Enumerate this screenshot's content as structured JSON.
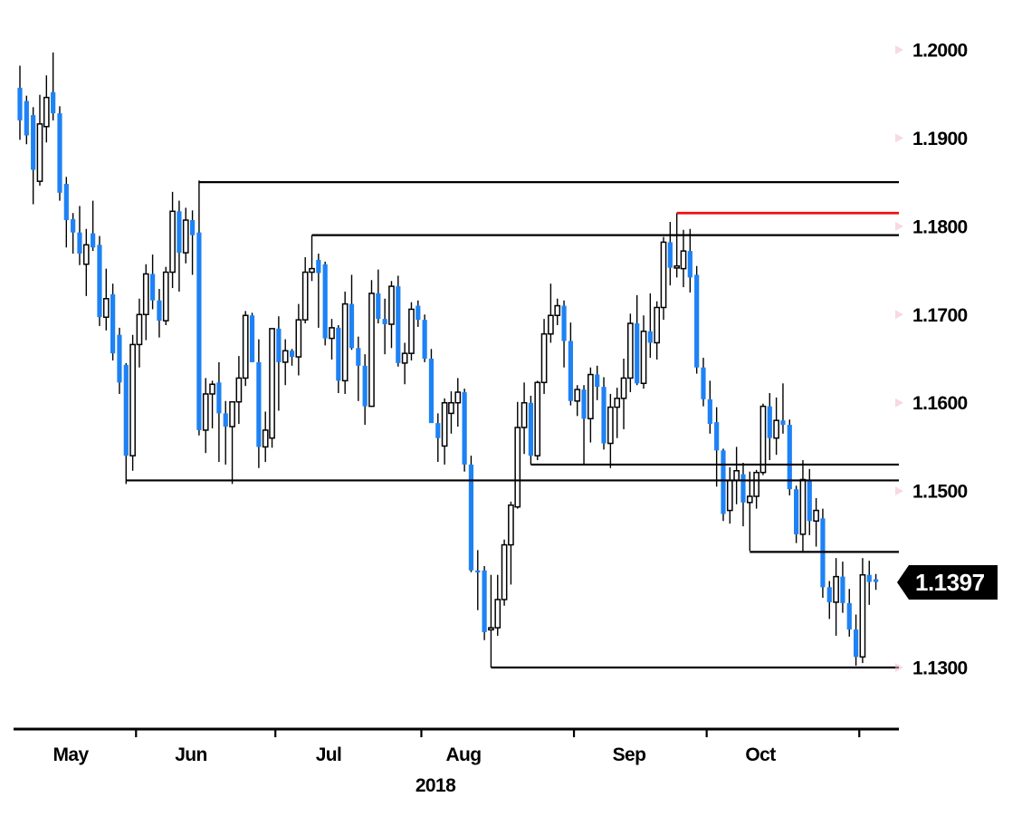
{
  "chart_data": {
    "type": "candlestick",
    "title": "",
    "x_axis": {
      "month_labels": [
        "May",
        "Jun",
        "Jul",
        "Aug",
        "Sep",
        "Oct"
      ],
      "year_label": "2018"
    },
    "y_axis": {
      "tick_labels": [
        "1.2000",
        "1.1900",
        "1.1800",
        "1.1700",
        "1.1600",
        "1.1500",
        "1.1300"
      ],
      "tick_values": [
        1.2,
        1.19,
        1.18,
        1.17,
        1.16,
        1.15,
        1.13
      ]
    },
    "ylim": [
      1.1265,
      1.2045
    ],
    "last_price_label": "1.1397",
    "last_price": 1.1397,
    "legend": "up candles hollow white, down candles solid blue",
    "month_start_indices": [
      18,
      39,
      61,
      84,
      104,
      127
    ],
    "candles": [
      [
        1.1957,
        1.1982,
        1.1898,
        1.192
      ],
      [
        1.1942,
        1.1948,
        1.1893,
        1.1903
      ],
      [
        1.1926,
        1.1935,
        1.1825,
        1.1864
      ],
      [
        1.1851,
        1.1949,
        1.1846,
        1.1916
      ],
      [
        1.1913,
        1.1971,
        1.1895,
        1.1946
      ],
      [
        1.1952,
        1.1997,
        1.192,
        1.1928
      ],
      [
        1.1928,
        1.1936,
        1.1829,
        1.1838
      ],
      [
        1.1848,
        1.1856,
        1.1776,
        1.1807
      ],
      [
        1.1808,
        1.1815,
        1.1769,
        1.1793
      ],
      [
        1.1793,
        1.1823,
        1.1756,
        1.1769
      ],
      [
        1.1757,
        1.1797,
        1.1721,
        1.1779
      ],
      [
        1.1792,
        1.1829,
        1.1772,
        1.1776
      ],
      [
        1.1779,
        1.1789,
        1.1687,
        1.1697
      ],
      [
        1.1697,
        1.1752,
        1.1682,
        1.1718
      ],
      [
        1.1723,
        1.1735,
        1.1648,
        1.1656
      ],
      [
        1.1677,
        1.1685,
        1.161,
        1.1623
      ],
      [
        1.1643,
        1.1645,
        1.1508,
        1.154
      ],
      [
        1.154,
        1.1677,
        1.1523,
        1.1666
      ],
      [
        1.1666,
        1.1718,
        1.164,
        1.17
      ],
      [
        1.17,
        1.1757,
        1.1671,
        1.1746
      ],
      [
        1.1746,
        1.1768,
        1.1706,
        1.1716
      ],
      [
        1.1716,
        1.1729,
        1.1674,
        1.1693
      ],
      [
        1.1693,
        1.1754,
        1.1688,
        1.1748
      ],
      [
        1.1748,
        1.1839,
        1.173,
        1.1817
      ],
      [
        1.1817,
        1.1829,
        1.1726,
        1.177
      ],
      [
        1.177,
        1.1821,
        1.1758,
        1.1807
      ],
      [
        1.1807,
        1.1818,
        1.1745,
        1.179
      ],
      [
        1.1793,
        1.1852,
        1.1563,
        1.1569
      ],
      [
        1.1569,
        1.1628,
        1.1543,
        1.161
      ],
      [
        1.161,
        1.1625,
        1.1571,
        1.1621
      ],
      [
        1.1623,
        1.1646,
        1.1533,
        1.1588
      ],
      [
        1.1588,
        1.1602,
        1.153,
        1.1573
      ],
      [
        1.1573,
        1.1601,
        1.1508,
        1.1601
      ],
      [
        1.1601,
        1.1653,
        1.1576,
        1.1628
      ],
      [
        1.1628,
        1.1704,
        1.1619,
        1.1699
      ],
      [
        1.1699,
        1.1702,
        1.1646,
        1.1646
      ],
      [
        1.1646,
        1.1672,
        1.1526,
        1.155
      ],
      [
        1.155,
        1.159,
        1.1533,
        1.1569
      ],
      [
        1.156,
        1.1684,
        1.1549,
        1.1684
      ],
      [
        1.1684,
        1.1698,
        1.1591,
        1.1646
      ],
      [
        1.1646,
        1.1672,
        1.162,
        1.1659
      ],
      [
        1.1659,
        1.1661,
        1.1642,
        1.1652
      ],
      [
        1.1652,
        1.1712,
        1.1631,
        1.1694
      ],
      [
        1.1694,
        1.1765,
        1.169,
        1.1748
      ],
      [
        1.1748,
        1.179,
        1.1738,
        1.1752
      ],
      [
        1.1762,
        1.1769,
        1.1685,
        1.1747
      ],
      [
        1.1757,
        1.176,
        1.1665,
        1.1673
      ],
      [
        1.1673,
        1.1695,
        1.1649,
        1.1685
      ],
      [
        1.1685,
        1.1688,
        1.1611,
        1.1625
      ],
      [
        1.1625,
        1.1726,
        1.161,
        1.1712
      ],
      [
        1.1712,
        1.1745,
        1.166,
        1.1662
      ],
      [
        1.1662,
        1.1675,
        1.1602,
        1.1642
      ],
      [
        1.1642,
        1.1655,
        1.1575,
        1.1596
      ],
      [
        1.1596,
        1.1739,
        1.1596,
        1.1724
      ],
      [
        1.1724,
        1.1751,
        1.169,
        1.1695
      ],
      [
        1.1695,
        1.1718,
        1.1655,
        1.1689
      ],
      [
        1.1689,
        1.1738,
        1.1662,
        1.1732
      ],
      [
        1.1732,
        1.1744,
        1.1641,
        1.1645
      ],
      [
        1.1645,
        1.1668,
        1.1621,
        1.1656
      ],
      [
        1.1656,
        1.1714,
        1.1648,
        1.1706
      ],
      [
        1.171,
        1.1716,
        1.1686,
        1.1694
      ],
      [
        1.1694,
        1.17,
        1.1646,
        1.165
      ],
      [
        1.165,
        1.1661,
        1.1582,
        1.1577
      ],
      [
        1.1577,
        1.1588,
        1.1533,
        1.156
      ],
      [
        1.1551,
        1.1605,
        1.153,
        1.16
      ],
      [
        1.1588,
        1.1613,
        1.1565,
        1.16
      ],
      [
        1.16,
        1.1628,
        1.1573,
        1.1612
      ],
      [
        1.1612,
        1.1616,
        1.1522,
        1.153
      ],
      [
        1.153,
        1.154,
        1.1408,
        1.141
      ],
      [
        1.141,
        1.1433,
        1.1365,
        1.1408
      ],
      [
        1.141,
        1.1415,
        1.1331,
        1.134
      ],
      [
        1.1343,
        1.1405,
        1.13,
        1.1345
      ],
      [
        1.1345,
        1.1405,
        1.1336,
        1.1377
      ],
      [
        1.1377,
        1.1445,
        1.137,
        1.1439
      ],
      [
        1.1439,
        1.1488,
        1.1394,
        1.1484
      ],
      [
        1.1482,
        1.1601,
        1.148,
        1.1572
      ],
      [
        1.1572,
        1.1623,
        1.1542,
        1.16
      ],
      [
        1.16,
        1.1608,
        1.153,
        1.154
      ],
      [
        1.154,
        1.1625,
        1.1535,
        1.1623
      ],
      [
        1.1623,
        1.1695,
        1.161,
        1.1678
      ],
      [
        1.1678,
        1.1735,
        1.1668,
        1.1699
      ],
      [
        1.1699,
        1.1718,
        1.1688,
        1.171
      ],
      [
        1.171,
        1.1716,
        1.164,
        1.167
      ],
      [
        1.167,
        1.1691,
        1.1597,
        1.1602
      ],
      [
        1.1602,
        1.162,
        1.1585,
        1.1615
      ],
      [
        1.1615,
        1.162,
        1.153,
        1.1582
      ],
      [
        1.1582,
        1.164,
        1.1555,
        1.1632
      ],
      [
        1.1632,
        1.1642,
        1.1603,
        1.1618
      ],
      [
        1.1618,
        1.1629,
        1.1547,
        1.1554
      ],
      [
        1.1554,
        1.161,
        1.1526,
        1.1595
      ],
      [
        1.1595,
        1.1617,
        1.156,
        1.1605
      ],
      [
        1.1605,
        1.165,
        1.157,
        1.1628
      ],
      [
        1.1628,
        1.1701,
        1.1612,
        1.169
      ],
      [
        1.169,
        1.1722,
        1.162,
        1.1622
      ],
      [
        1.1622,
        1.1699,
        1.1616,
        1.1681
      ],
      [
        1.1681,
        1.1724,
        1.1651,
        1.1668
      ],
      [
        1.1668,
        1.1715,
        1.1649,
        1.1708
      ],
      [
        1.1708,
        1.1788,
        1.1694,
        1.1782
      ],
      [
        1.1782,
        1.1805,
        1.1733,
        1.1753
      ],
      [
        1.1753,
        1.1815,
        1.1742,
        1.1755
      ],
      [
        1.1752,
        1.1796,
        1.1731,
        1.1772
      ],
      [
        1.1772,
        1.1797,
        1.1725,
        1.1742
      ],
      [
        1.1745,
        1.1755,
        1.1633,
        1.164
      ],
      [
        1.164,
        1.1651,
        1.1596,
        1.1604
      ],
      [
        1.1604,
        1.1625,
        1.1565,
        1.1576
      ],
      [
        1.1578,
        1.1595,
        1.1505,
        1.1546
      ],
      [
        1.1546,
        1.1548,
        1.1466,
        1.1474
      ],
      [
        1.1478,
        1.1527,
        1.1463,
        1.1512
      ],
      [
        1.1512,
        1.155,
        1.1485,
        1.1523
      ],
      [
        1.1519,
        1.1532,
        1.146,
        1.1487
      ],
      [
        1.1487,
        1.1522,
        1.1432,
        1.1494
      ],
      [
        1.1494,
        1.1524,
        1.148,
        1.1521
      ],
      [
        1.1521,
        1.1599,
        1.1518,
        1.1596
      ],
      [
        1.1596,
        1.1611,
        1.1535,
        1.156
      ],
      [
        1.156,
        1.1606,
        1.1541,
        1.158
      ],
      [
        1.158,
        1.1622,
        1.1565,
        1.1575
      ],
      [
        1.1575,
        1.1581,
        1.1495,
        1.1502
      ],
      [
        1.1502,
        1.1506,
        1.1441,
        1.1451
      ],
      [
        1.1451,
        1.1535,
        1.1432,
        1.1513
      ],
      [
        1.1513,
        1.1525,
        1.145,
        1.1466
      ],
      [
        1.1466,
        1.1492,
        1.1437,
        1.1478
      ],
      [
        1.1469,
        1.148,
        1.1379,
        1.1391
      ],
      [
        1.1391,
        1.1398,
        1.1355,
        1.1374
      ],
      [
        1.1374,
        1.1424,
        1.1336,
        1.1403
      ],
      [
        1.1403,
        1.142,
        1.1362,
        1.1373
      ],
      [
        1.1373,
        1.1389,
        1.1335,
        1.1343
      ],
      [
        1.1343,
        1.136,
        1.1302,
        1.1312
      ],
      [
        1.1312,
        1.1424,
        1.1305,
        1.1405
      ],
      [
        1.1405,
        1.1421,
        1.1371,
        1.1397
      ],
      [
        1.14,
        1.1406,
        1.1388,
        1.1397
      ]
    ],
    "levels": [
      {
        "price": 1.185,
        "color": "#000000",
        "start_index": 27
      },
      {
        "price": 1.1815,
        "color": "#ee0f0f",
        "start_index": 99
      },
      {
        "price": 1.179,
        "color": "#000000",
        "start_index": 44
      },
      {
        "price": 1.153,
        "color": "#000000",
        "start_index": 77
      },
      {
        "price": 1.1512,
        "color": "#000000",
        "start_index": 16
      },
      {
        "price": 1.1431,
        "color": "#000000",
        "start_index": 110
      },
      {
        "price": 1.13,
        "color": "#000000",
        "start_index": 71
      }
    ],
    "colors": {
      "down_candle": "#1e82f5",
      "up_candle_fill": "#ffffff",
      "candle_outline": "#000000",
      "axis": "#000000",
      "label_text": "#000000",
      "price_tag_bg": "#000000",
      "price_tag_text": "#ffffff",
      "tick_arrow": "#f2b8d4"
    }
  }
}
